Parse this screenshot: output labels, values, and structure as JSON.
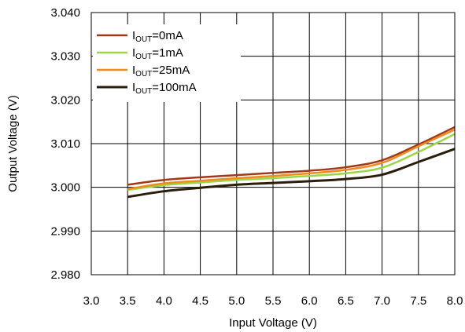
{
  "chart_data": {
    "type": "line",
    "title": "",
    "xlabel": "Input Voltage (V)",
    "ylabel": "Output Voltage (V)",
    "xlim": [
      3.0,
      8.0
    ],
    "ylim": [
      2.98,
      3.04
    ],
    "xticks": [
      3.0,
      3.5,
      4.0,
      4.5,
      5.0,
      5.5,
      6.0,
      6.5,
      7.0,
      7.5,
      8.0
    ],
    "xtick_labels": [
      "3.0",
      "3.5",
      "4.0",
      "4.5",
      "5.0",
      "5.5",
      "6.0",
      "6.5",
      "7.0",
      "7.5",
      "8.0"
    ],
    "yticks": [
      2.98,
      2.99,
      3.0,
      3.01,
      3.02,
      3.03,
      3.04
    ],
    "ytick_labels": [
      "2.980",
      "2.990",
      "3.000",
      "3.010",
      "3.020",
      "3.030",
      "3.040"
    ],
    "grid": true,
    "legend_position": "top-left",
    "x": [
      3.5,
      4.0,
      4.5,
      5.0,
      5.5,
      6.0,
      6.5,
      7.0,
      7.5,
      8.0
    ],
    "series": [
      {
        "legend_main": "I",
        "legend_sub": "OUT",
        "legend_tail": "=0mA",
        "color": "#a0391a",
        "values": [
          3.0006,
          3.0017,
          3.0023,
          3.0028,
          3.0033,
          3.0038,
          3.0046,
          3.0062,
          3.0098,
          3.0138
        ]
      },
      {
        "legend_main": "I",
        "legend_sub": "OUT",
        "legend_tail": "=1mA",
        "color": "#9bd64a",
        "values": [
          2.9994,
          3.0005,
          3.0011,
          3.0017,
          3.0021,
          3.0026,
          3.0032,
          3.0045,
          3.0081,
          3.0122
        ]
      },
      {
        "legend_main": "I",
        "legend_sub": "OUT",
        "legend_tail": "=25mA",
        "color": "#f08a1c",
        "values": [
          2.9996,
          3.0009,
          3.0015,
          3.0021,
          3.0026,
          3.0032,
          3.004,
          3.0056,
          3.0094,
          3.0132
        ]
      },
      {
        "legend_main": "I",
        "legend_sub": "OUT",
        "legend_tail": "=100mA",
        "color": "#2b1d0a",
        "values": [
          2.9978,
          2.9991,
          2.9999,
          3.0006,
          3.001,
          3.0014,
          3.0019,
          3.0029,
          3.0058,
          3.0088
        ]
      }
    ]
  }
}
